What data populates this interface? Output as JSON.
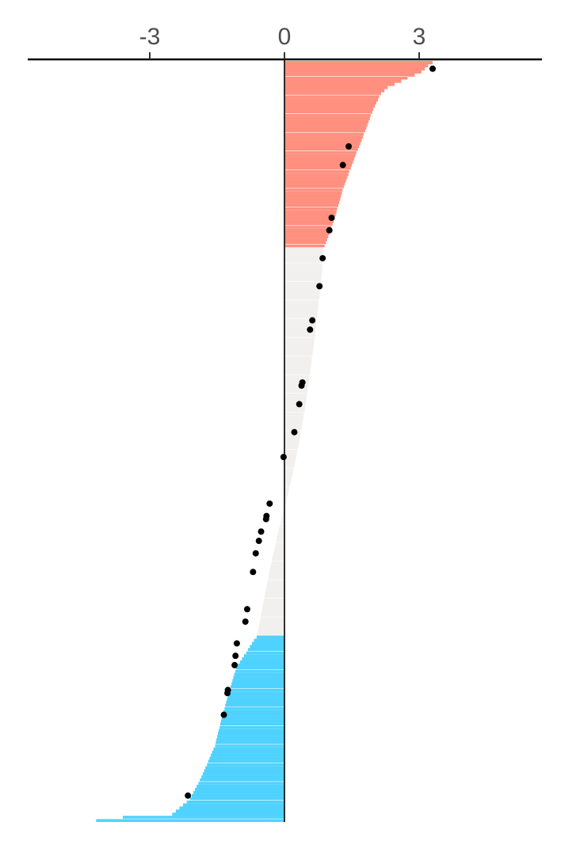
{
  "chart_data": {
    "type": "bar",
    "orientation": "horizontal",
    "x_axis_position": "top",
    "grid": false,
    "xlim": [
      -5.8,
      5.8
    ],
    "x_ticks": [
      -3,
      0,
      3
    ],
    "x_tick_labels": [
      "-3",
      "0",
      "3"
    ],
    "colors": {
      "high": "#FF9080",
      "middle": "#F1F0EE",
      "low": "#4FD2FF",
      "points": "#000000",
      "axis": "#000000",
      "tick_text": "#4d4d4d",
      "separator": "#ffffff"
    },
    "groups": [
      {
        "color_key": "high",
        "count": 60
      },
      {
        "color_key": "middle",
        "count": 125
      },
      {
        "color_key": "low",
        "count": 60
      }
    ],
    "bar_value_profile": [
      [
        0,
        3.3
      ],
      [
        1,
        3.2
      ],
      [
        3,
        3.05
      ],
      [
        6,
        2.6
      ],
      [
        8,
        2.3
      ],
      [
        10,
        2.15
      ],
      [
        15,
        1.98
      ],
      [
        20,
        1.85
      ],
      [
        25,
        1.72
      ],
      [
        30,
        1.58
      ],
      [
        35,
        1.45
      ],
      [
        40,
        1.32
      ],
      [
        45,
        1.22
      ],
      [
        50,
        1.12
      ],
      [
        55,
        1.0
      ],
      [
        59,
        0.9
      ],
      [
        60,
        0.88
      ],
      [
        70,
        0.82
      ],
      [
        80,
        0.74
      ],
      [
        90,
        0.66
      ],
      [
        100,
        0.57
      ],
      [
        110,
        0.47
      ],
      [
        120,
        0.36
      ],
      [
        130,
        0.22
      ],
      [
        140,
        0.06
      ],
      [
        150,
        -0.12
      ],
      [
        160,
        -0.28
      ],
      [
        170,
        -0.42
      ],
      [
        180,
        -0.55
      ],
      [
        185,
        -0.62
      ],
      [
        186,
        -0.68
      ],
      [
        195,
        -1.08
      ],
      [
        210,
        -1.38
      ],
      [
        220,
        -1.55
      ],
      [
        230,
        -1.85
      ],
      [
        237,
        -2.1
      ],
      [
        242,
        -2.5
      ],
      [
        243,
        -3.6
      ],
      [
        244,
        -4.2
      ]
    ],
    "points": [
      {
        "rank": 2,
        "value": 3.3
      },
      {
        "rank": 27,
        "value": 1.43
      },
      {
        "rank": 33,
        "value": 1.3
      },
      {
        "rank": 50,
        "value": 1.05
      },
      {
        "rank": 54,
        "value": 1.0
      },
      {
        "rank": 63,
        "value": 0.85
      },
      {
        "rank": 72,
        "value": 0.78
      },
      {
        "rank": 83,
        "value": 0.62
      },
      {
        "rank": 86,
        "value": 0.57
      },
      {
        "rank": 103,
        "value": 0.4
      },
      {
        "rank": 104,
        "value": 0.38
      },
      {
        "rank": 110,
        "value": 0.33
      },
      {
        "rank": 119,
        "value": 0.22
      },
      {
        "rank": 127,
        "value": -0.02
      },
      {
        "rank": 142,
        "value": -0.33
      },
      {
        "rank": 146,
        "value": -0.4
      },
      {
        "rank": 147,
        "value": -0.41
      },
      {
        "rank": 151,
        "value": -0.52
      },
      {
        "rank": 154,
        "value": -0.57
      },
      {
        "rank": 158,
        "value": -0.64
      },
      {
        "rank": 164,
        "value": -0.7
      },
      {
        "rank": 176,
        "value": -0.83
      },
      {
        "rank": 180,
        "value": -0.87
      },
      {
        "rank": 187,
        "value": -1.06
      },
      {
        "rank": 191,
        "value": -1.09
      },
      {
        "rank": 194,
        "value": -1.11
      },
      {
        "rank": 202,
        "value": -1.26
      },
      {
        "rank": 203,
        "value": -1.27
      },
      {
        "rank": 210,
        "value": -1.35
      },
      {
        "rank": 236,
        "value": -2.15
      }
    ]
  }
}
